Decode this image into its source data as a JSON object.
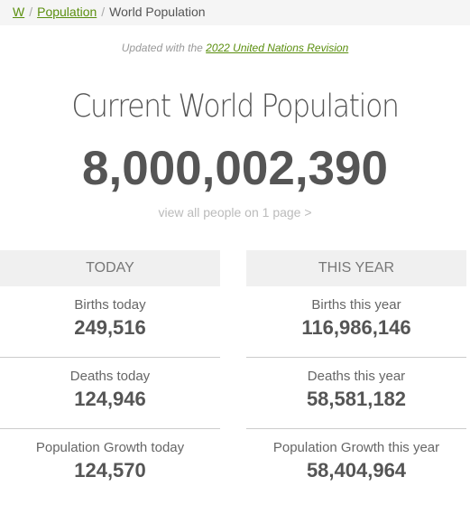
{
  "breadcrumb": {
    "items": [
      "W",
      "Population",
      "World Population"
    ],
    "separator": "/"
  },
  "updated": {
    "prefix": "Updated with the",
    "link": "2022 United Nations Revision"
  },
  "title": "Current World Population",
  "counter": "8,000,002,390",
  "view_all": "view all people on 1 page >",
  "columns": [
    {
      "header": "TODAY",
      "rows": [
        {
          "label": "Births today",
          "value": "249,516"
        },
        {
          "label": "Deaths today",
          "value": "124,946"
        },
        {
          "label": "Population Growth today",
          "value": "124,570"
        }
      ]
    },
    {
      "header": "THIS YEAR",
      "rows": [
        {
          "label": "Births this year",
          "value": "116,986,146"
        },
        {
          "label": "Deaths this year",
          "value": "58,581,182"
        },
        {
          "label": "Population Growth this year",
          "value": "58,404,964"
        }
      ]
    }
  ]
}
